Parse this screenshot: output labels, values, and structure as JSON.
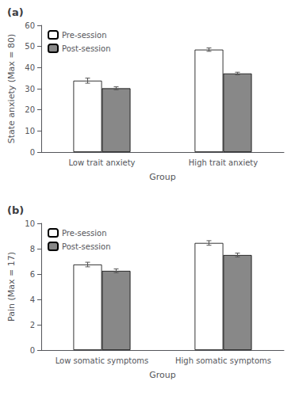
{
  "chart_data": [
    {
      "type": "bar",
      "title": "(a)",
      "ylabel": "State anxiety (Max = 80)",
      "xlabel": "Group",
      "categories": [
        "Low trait anxiety",
        "High trait anxiety"
      ],
      "series": [
        {
          "name": "Pre-session",
          "color": "#ffffff",
          "values": [
            33.8,
            48.5
          ],
          "errors": [
            1.2,
            0.8
          ]
        },
        {
          "name": "Post-session",
          "color": "#888888",
          "values": [
            30.2,
            37.2
          ],
          "errors": [
            0.7,
            0.6
          ]
        }
      ],
      "ylim": [
        0,
        60
      ],
      "yticks": [
        0,
        10,
        20,
        30,
        40,
        50,
        60
      ],
      "grid": false,
      "legend": "upper left"
    },
    {
      "type": "bar",
      "title": "(b)",
      "ylabel": "Pain (Max = 17)",
      "xlabel": "Group",
      "categories": [
        "Low somatic symptoms",
        "High somatic symptoms"
      ],
      "series": [
        {
          "name": "Pre-session",
          "color": "#ffffff",
          "values": [
            6.75,
            8.45
          ],
          "errors": [
            0.18,
            0.18
          ]
        },
        {
          "name": "Post-session",
          "color": "#888888",
          "values": [
            6.25,
            7.5
          ],
          "errors": [
            0.15,
            0.15
          ]
        }
      ],
      "ylim": [
        0,
        10
      ],
      "yticks": [
        0,
        2,
        4,
        6,
        8,
        10
      ],
      "grid": false,
      "legend": "upper left"
    }
  ]
}
